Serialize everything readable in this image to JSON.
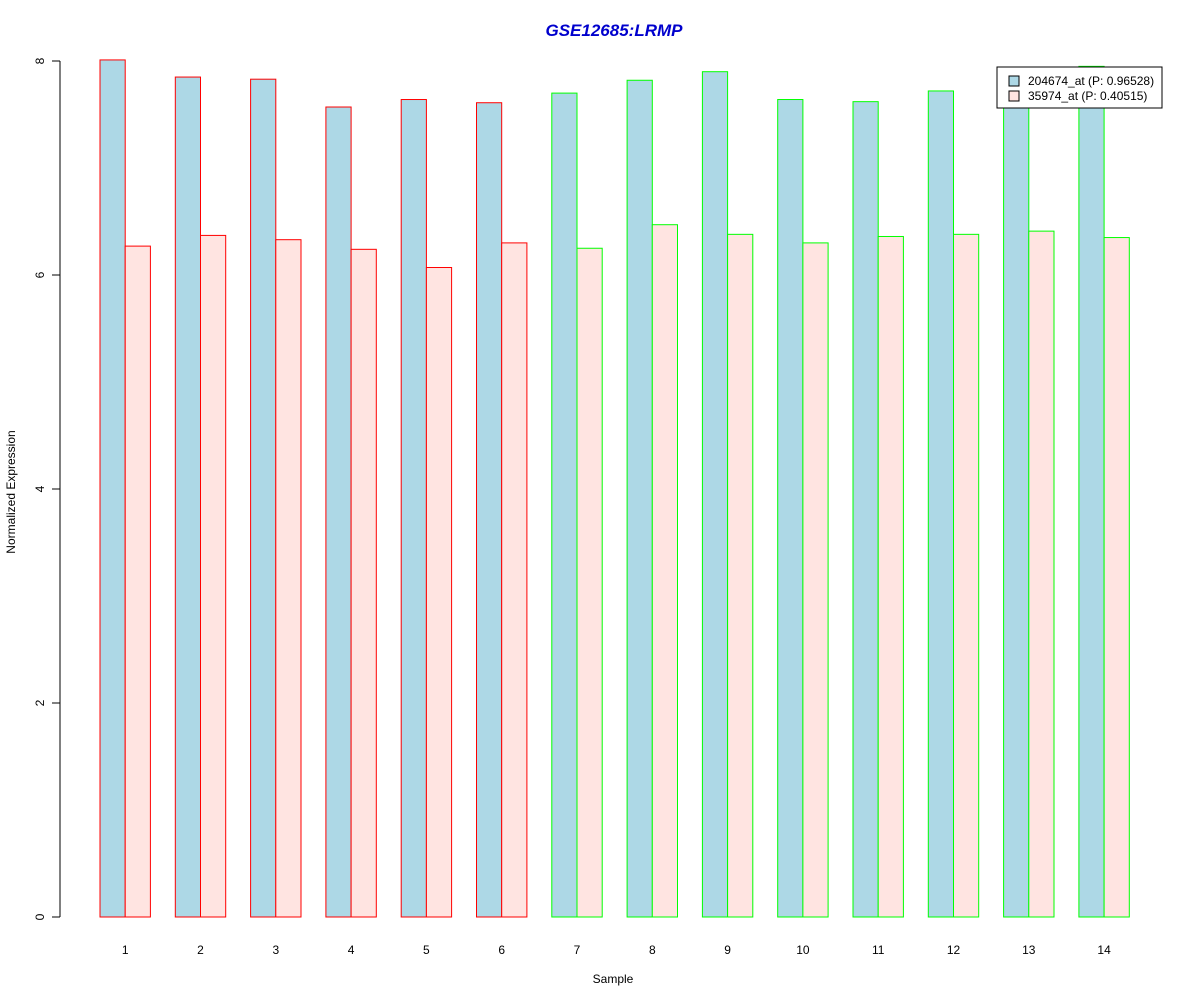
{
  "chart_data": {
    "type": "bar",
    "title": "GSE12685:LRMP",
    "xlabel": "Sample",
    "ylabel": "Normalized Expression",
    "categories": [
      "1",
      "2",
      "3",
      "4",
      "5",
      "6",
      "7",
      "8",
      "9",
      "10",
      "11",
      "12",
      "13",
      "14"
    ],
    "ylim": [
      0,
      8
    ],
    "yticks": [
      "0",
      "2",
      "4",
      "6",
      "8"
    ],
    "grid": false,
    "legend_position": "top-right",
    "series": [
      {
        "name": "204674_at (P: 0.96528)",
        "fill": "#add8e6",
        "values": [
          8.01,
          7.85,
          7.83,
          7.57,
          7.64,
          7.61,
          7.7,
          7.82,
          7.9,
          7.64,
          7.62,
          7.72,
          7.57,
          7.95
        ]
      },
      {
        "name": "35974_at (P: 0.40515)",
        "fill": "#ffe4e1",
        "values": [
          6.27,
          6.37,
          6.33,
          6.24,
          6.07,
          6.3,
          6.25,
          6.47,
          6.38,
          6.3,
          6.36,
          6.38,
          6.41,
          6.35
        ]
      }
    ],
    "group_border_colors": [
      "#ff0000",
      "#ff0000",
      "#ff0000",
      "#ff0000",
      "#ff0000",
      "#ff0000",
      "#00ff00",
      "#00ff00",
      "#00ff00",
      "#00ff00",
      "#00ff00",
      "#00ff00",
      "#00ff00",
      "#00ff00"
    ],
    "title_color": "#0000cd"
  }
}
